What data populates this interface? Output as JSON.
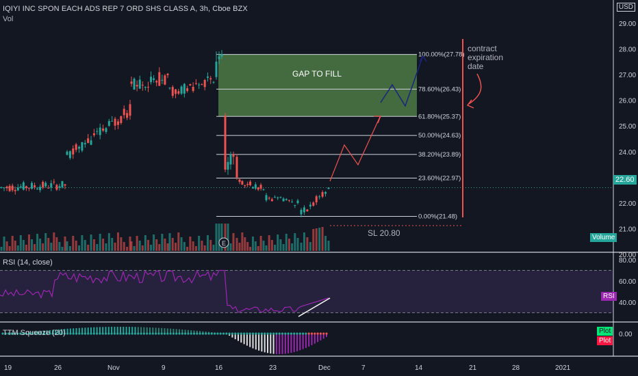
{
  "header": {
    "symbol_line": "IQIYI INC SPON EACH ADS REP 7 ORD SHS CLASS A, 3h, Cboe BZX",
    "volume_label": "Vol",
    "currency": "USD"
  },
  "price_axis": {
    "ticks": [
      "29.00",
      "28.00",
      "27.00",
      "26.00",
      "25.00",
      "24.00",
      "23.00",
      "22.00",
      "21.00",
      "20.00"
    ],
    "last_price": "22.60",
    "last_price_color": "#26a69a",
    "volume_badge": "Volume"
  },
  "fib": {
    "levels": [
      {
        "label": "100.00%(27.78)",
        "price": 27.78
      },
      {
        "label": "78.60%(26.43)",
        "price": 26.43
      },
      {
        "label": "61.80%(25.37)",
        "price": 25.37
      },
      {
        "label": "50.00%(24.63)",
        "price": 24.63
      },
      {
        "label": "38.20%(23.89)",
        "price": 23.89
      },
      {
        "label": "23.60%(22.97)",
        "price": 22.97
      },
      {
        "label": "0.00%(21.48)",
        "price": 21.48
      }
    ]
  },
  "annotations": {
    "gap_label": "GAP TO FILL",
    "contract_note": [
      "contract",
      "expiration",
      "date"
    ],
    "stop_loss": "SL 20.80",
    "earnings_marker": "E"
  },
  "rsi": {
    "label": "RSI (14, close)",
    "ticks": [
      "80.00",
      "60.00",
      "40.00"
    ],
    "badge": "RSI",
    "badge_color": "#9c27b0"
  },
  "squeeze": {
    "label": "TTM Squeeze (20)",
    "tick": "0.00",
    "plot_badges": [
      {
        "text": "Plot",
        "color": "#00e676"
      },
      {
        "text": "Plot",
        "color": "#ff1744"
      }
    ]
  },
  "time_axis": {
    "ticks": [
      "19",
      "26",
      "Nov",
      "9",
      "16",
      "23",
      "Dec",
      "7",
      "14",
      "21",
      "28",
      "2021"
    ]
  },
  "colors": {
    "up": "#26a69a",
    "down": "#ef5350",
    "background": "#131722",
    "gap_zone": "#4c7a44",
    "rsi_line": "#9c27b0",
    "projection": "#1a237e"
  }
}
